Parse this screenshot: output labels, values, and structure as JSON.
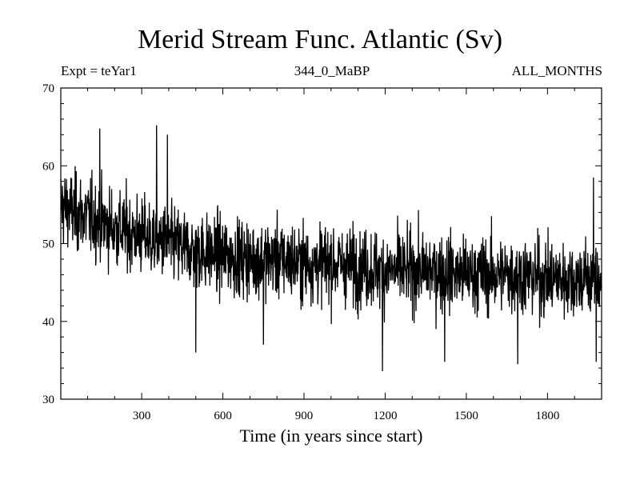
{
  "chart_data": {
    "type": "line",
    "title": "Merid Stream Func. Atlantic (Sv)",
    "subtitle_left": "Expt = teYar1",
    "subtitle_center": "344_0_MaBP",
    "subtitle_right": "ALL_MONTHS",
    "xlabel": "Time (in years since start)",
    "ylabel": "",
    "xlim": [
      1,
      2000
    ],
    "ylim": [
      30,
      70
    ],
    "x_ticks": [
      300,
      600,
      900,
      1200,
      1500,
      1800
    ],
    "y_ticks": [
      30,
      40,
      50,
      60,
      70
    ],
    "grid": false,
    "series": [
      {
        "color": "#000000",
        "description_points": [
          {
            "x": 1,
            "y": 55
          },
          {
            "x": 50,
            "y": 54
          },
          {
            "x": 100,
            "y": 53.5
          },
          {
            "x": 200,
            "y": 52
          },
          {
            "x": 300,
            "y": 51
          },
          {
            "x": 400,
            "y": 50
          },
          {
            "x": 500,
            "y": 49
          },
          {
            "x": 600,
            "y": 48.5
          },
          {
            "x": 700,
            "y": 48
          },
          {
            "x": 800,
            "y": 48
          },
          {
            "x": 900,
            "y": 47.5
          },
          {
            "x": 1000,
            "y": 47.5
          },
          {
            "x": 1100,
            "y": 47
          },
          {
            "x": 1200,
            "y": 46.5
          },
          {
            "x": 1300,
            "y": 46.5
          },
          {
            "x": 1400,
            "y": 46.5
          },
          {
            "x": 1500,
            "y": 46
          },
          {
            "x": 1600,
            "y": 46
          },
          {
            "x": 1700,
            "y": 46
          },
          {
            "x": 1800,
            "y": 45.5
          },
          {
            "x": 1900,
            "y": 45.5
          },
          {
            "x": 2000,
            "y": 45.5
          }
        ],
        "noise_amplitude": 4.5,
        "extremes": [
          {
            "x": 145,
            "y": 64.8
          },
          {
            "x": 355,
            "y": 65.2
          },
          {
            "x": 395,
            "y": 64
          },
          {
            "x": 500,
            "y": 36
          },
          {
            "x": 750,
            "y": 37
          },
          {
            "x": 1190,
            "y": 33.6
          },
          {
            "x": 1420,
            "y": 34.8
          },
          {
            "x": 1690,
            "y": 34.5
          },
          {
            "x": 1980,
            "y": 34.8
          },
          {
            "x": 1970,
            "y": 58.5
          }
        ]
      }
    ]
  }
}
